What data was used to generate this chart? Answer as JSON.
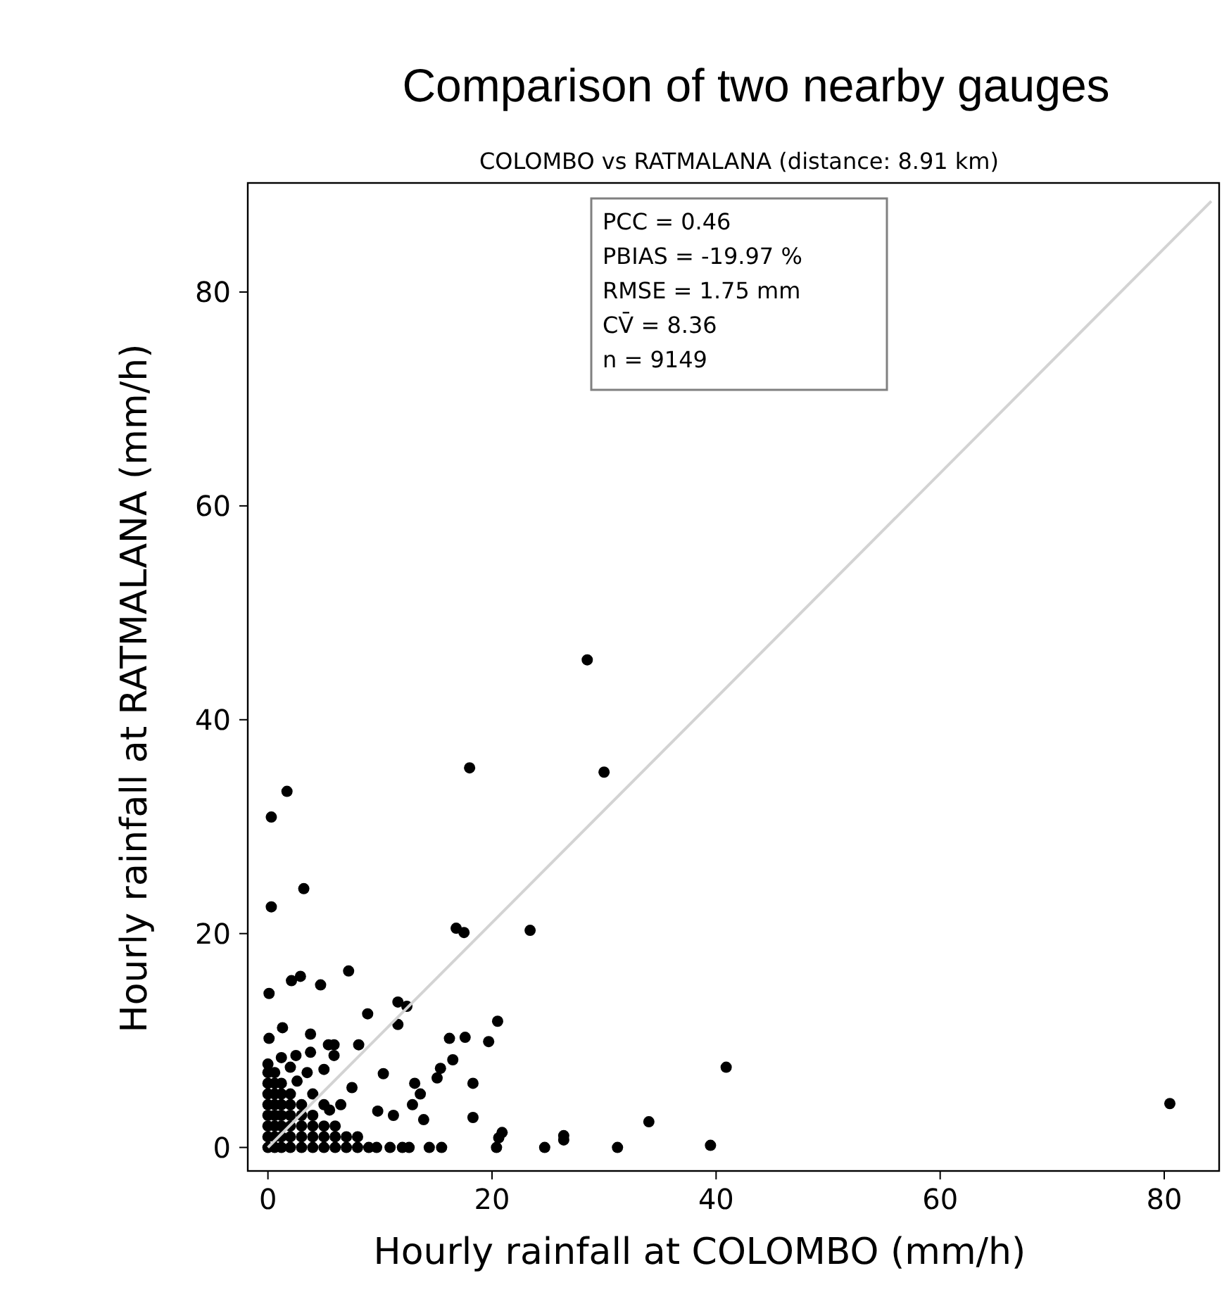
{
  "chart_data": {
    "type": "scatter",
    "title": "Comparison of two nearby gauges",
    "subtitle": "COLOMBO vs RATMALANA (distance: 8.91 km)",
    "xlabel": "Hourly rainfall at COLOMBO (mm/h)",
    "ylabel": "Hourly rainfall at RATMALANA (mm/h)",
    "annotations": [
      "PCC = 0.46",
      "PBIAS = -19.97 %",
      "RMSE = 1.75 mm",
      "CV̄ = 8.36",
      "n = 9149"
    ],
    "xlim": [
      -1.8,
      84.9
    ],
    "ylim": [
      -2.2,
      90.2
    ],
    "xticks": [
      0,
      20,
      40,
      60,
      80
    ],
    "yticks": [
      0,
      20,
      40,
      60,
      80
    ],
    "grid": false,
    "marker": "circle",
    "series": [
      {
        "color": "#000000",
        "x": [
          28.5,
          18.0,
          30.0,
          1.7,
          0.3,
          3.2,
          0.3,
          16.8,
          17.5,
          23.4,
          7.2,
          2.1,
          2.9,
          4.7,
          0.1,
          11.6,
          12.4,
          8.9,
          11.6,
          20.5,
          1.3,
          0.1,
          3.8,
          16.2,
          17.6,
          19.7,
          8.1,
          5.4,
          5.9,
          5.9,
          3.8,
          2.5,
          16.5,
          15.4,
          15.1,
          40.9,
          5.0,
          10.3,
          18.3,
          13.1,
          13.6,
          7.5,
          12.9,
          9.8,
          11.2,
          13.9,
          18.3,
          34.0,
          20.9,
          20.6,
          20.4,
          26.4,
          26.4,
          24.7,
          31.2,
          39.5,
          14.4,
          15.5,
          10.9,
          12.0,
          12.6,
          9.7,
          80.5,
          0,
          0,
          0,
          0,
          0,
          0,
          0,
          0,
          0,
          0.6,
          0.6,
          0.6,
          0.6,
          0.6,
          0.6,
          0.6,
          0.6,
          1.2,
          1.2,
          1.2,
          1.2,
          1.2,
          1.2,
          1.2,
          2,
          2,
          2,
          2,
          2,
          2,
          3,
          3,
          3,
          3,
          3,
          4,
          4,
          4,
          4,
          5,
          5,
          5,
          6,
          6,
          6,
          7,
          7,
          8,
          8,
          9,
          1.2,
          2,
          3.5,
          2.6,
          4,
          5,
          6.5,
          5.5
        ],
        "values": [
          45.6,
          35.5,
          35.1,
          33.3,
          30.9,
          24.2,
          22.5,
          20.5,
          20.1,
          20.3,
          16.5,
          15.6,
          16.0,
          15.2,
          14.4,
          13.6,
          13.2,
          12.5,
          11.5,
          11.8,
          11.2,
          10.2,
          10.6,
          10.2,
          10.3,
          9.9,
          9.6,
          9.6,
          9.6,
          8.6,
          8.9,
          8.6,
          8.2,
          7.4,
          6.5,
          7.5,
          7.3,
          6.9,
          6.0,
          6.0,
          5.0,
          5.6,
          4.0,
          3.4,
          3.0,
          2.6,
          2.8,
          2.4,
          1.4,
          0.9,
          0.0,
          1.1,
          0.7,
          0.0,
          0.0,
          0.2,
          0.0,
          0.0,
          0.0,
          0.0,
          0.0,
          0.0,
          4.1,
          0,
          1,
          2,
          3,
          4,
          5,
          6,
          7,
          7.8,
          0,
          1,
          2,
          3,
          4,
          5,
          6,
          7,
          0,
          1,
          2,
          3,
          4,
          5,
          6,
          0,
          1,
          2,
          3,
          4,
          5,
          0,
          1,
          2,
          3,
          4,
          0,
          1,
          2,
          3,
          0,
          1,
          2,
          0,
          1,
          2,
          0,
          1,
          0,
          1,
          0,
          8.4,
          7.5,
          7,
          6.2,
          5,
          4,
          4,
          3.5
        ]
      },
      {
        "type": "line",
        "marker": "none",
        "color": "#d3d3d3",
        "x": [
          0,
          84.2
        ],
        "values": [
          0,
          88.5
        ]
      }
    ]
  }
}
